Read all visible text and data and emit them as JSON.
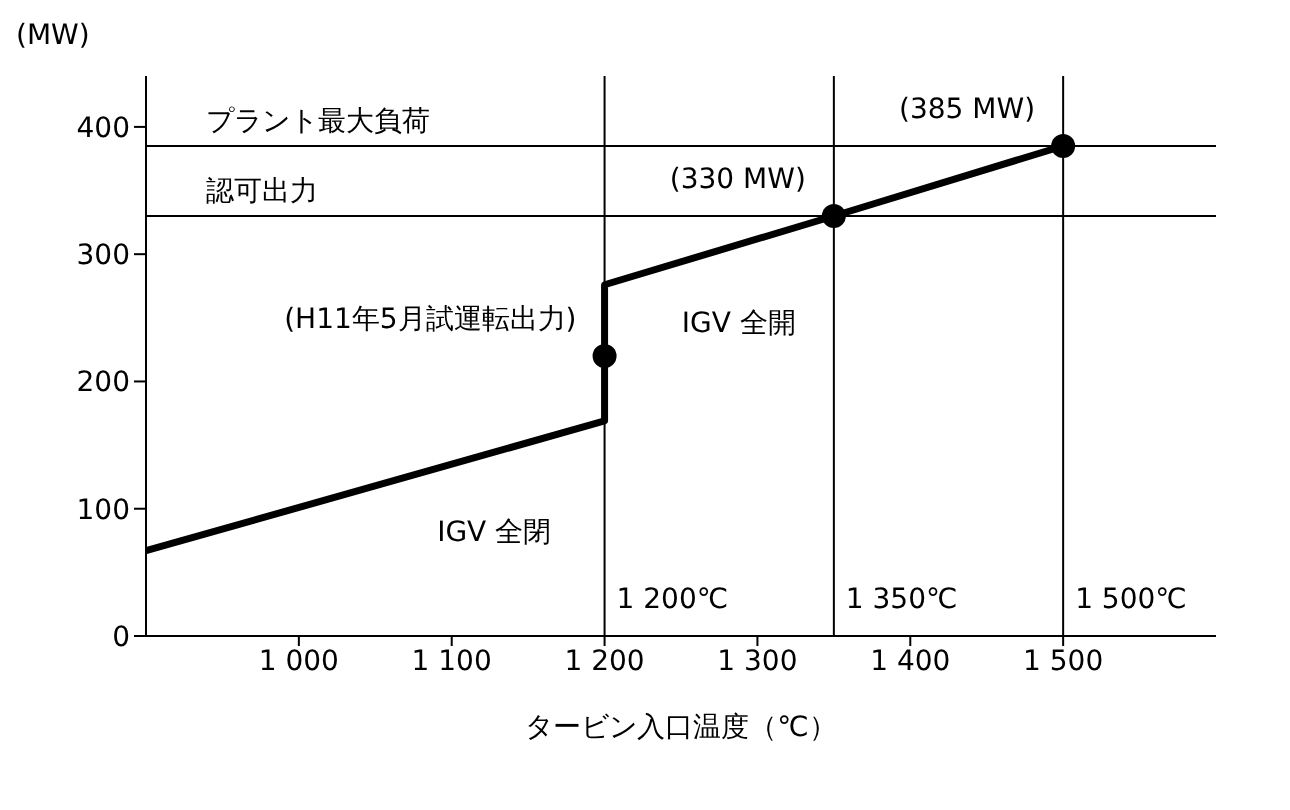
{
  "chart_data": {
    "type": "line",
    "xlabel": "タービン入口温度（℃）",
    "ylabel": "(MW)",
    "xlim": [
      900,
      1600
    ],
    "ylim": [
      0,
      440
    ],
    "xticks": [
      {
        "value": 1000,
        "label": "1 000"
      },
      {
        "value": 1100,
        "label": "1 100"
      },
      {
        "value": 1200,
        "label": "1 200"
      },
      {
        "value": 1300,
        "label": "1 300"
      },
      {
        "value": 1400,
        "label": "1 400"
      },
      {
        "value": 1500,
        "label": "1 500"
      }
    ],
    "yticks": [
      0,
      100,
      200,
      300,
      400
    ],
    "series": [
      {
        "color": "#000000",
        "x": [
          900,
          1200,
          1200,
          1350,
          1500
        ],
        "values": [
          67,
          169,
          276,
          330,
          385
        ]
      },
      {
        "type": "scatter",
        "color": "#000000",
        "marker": "circle",
        "x": [
          1200,
          1350,
          1500
        ],
        "values": [
          220,
          330,
          385
        ]
      }
    ],
    "ref_lines": [
      {
        "axis": "y",
        "value": 385,
        "label": "プラント最大負荷",
        "color": "#000000"
      },
      {
        "axis": "y",
        "value": 330,
        "label": "認可出力",
        "color": "#000000"
      },
      {
        "axis": "x",
        "value": 1200,
        "label": "1 200℃",
        "color": "#000000"
      },
      {
        "axis": "x",
        "value": 1350,
        "label": "1 350℃",
        "color": "#000000"
      },
      {
        "axis": "x",
        "value": 1500,
        "label": "1 500℃",
        "color": "#000000"
      }
    ],
    "annotations": [
      {
        "text": "(H11年5月試運転出力)",
        "x": 1200,
        "y": 220
      },
      {
        "text": "(330 MW)",
        "x": 1350,
        "y": 330
      },
      {
        "text": "(385 MW)",
        "x": 1500,
        "y": 385
      },
      {
        "text": "IGV 全閉",
        "x": 1080,
        "y": 128
      },
      {
        "text": "IGV 全開",
        "x": 1240,
        "y": 292
      }
    ],
    "grid": false,
    "line_style": "solid"
  }
}
